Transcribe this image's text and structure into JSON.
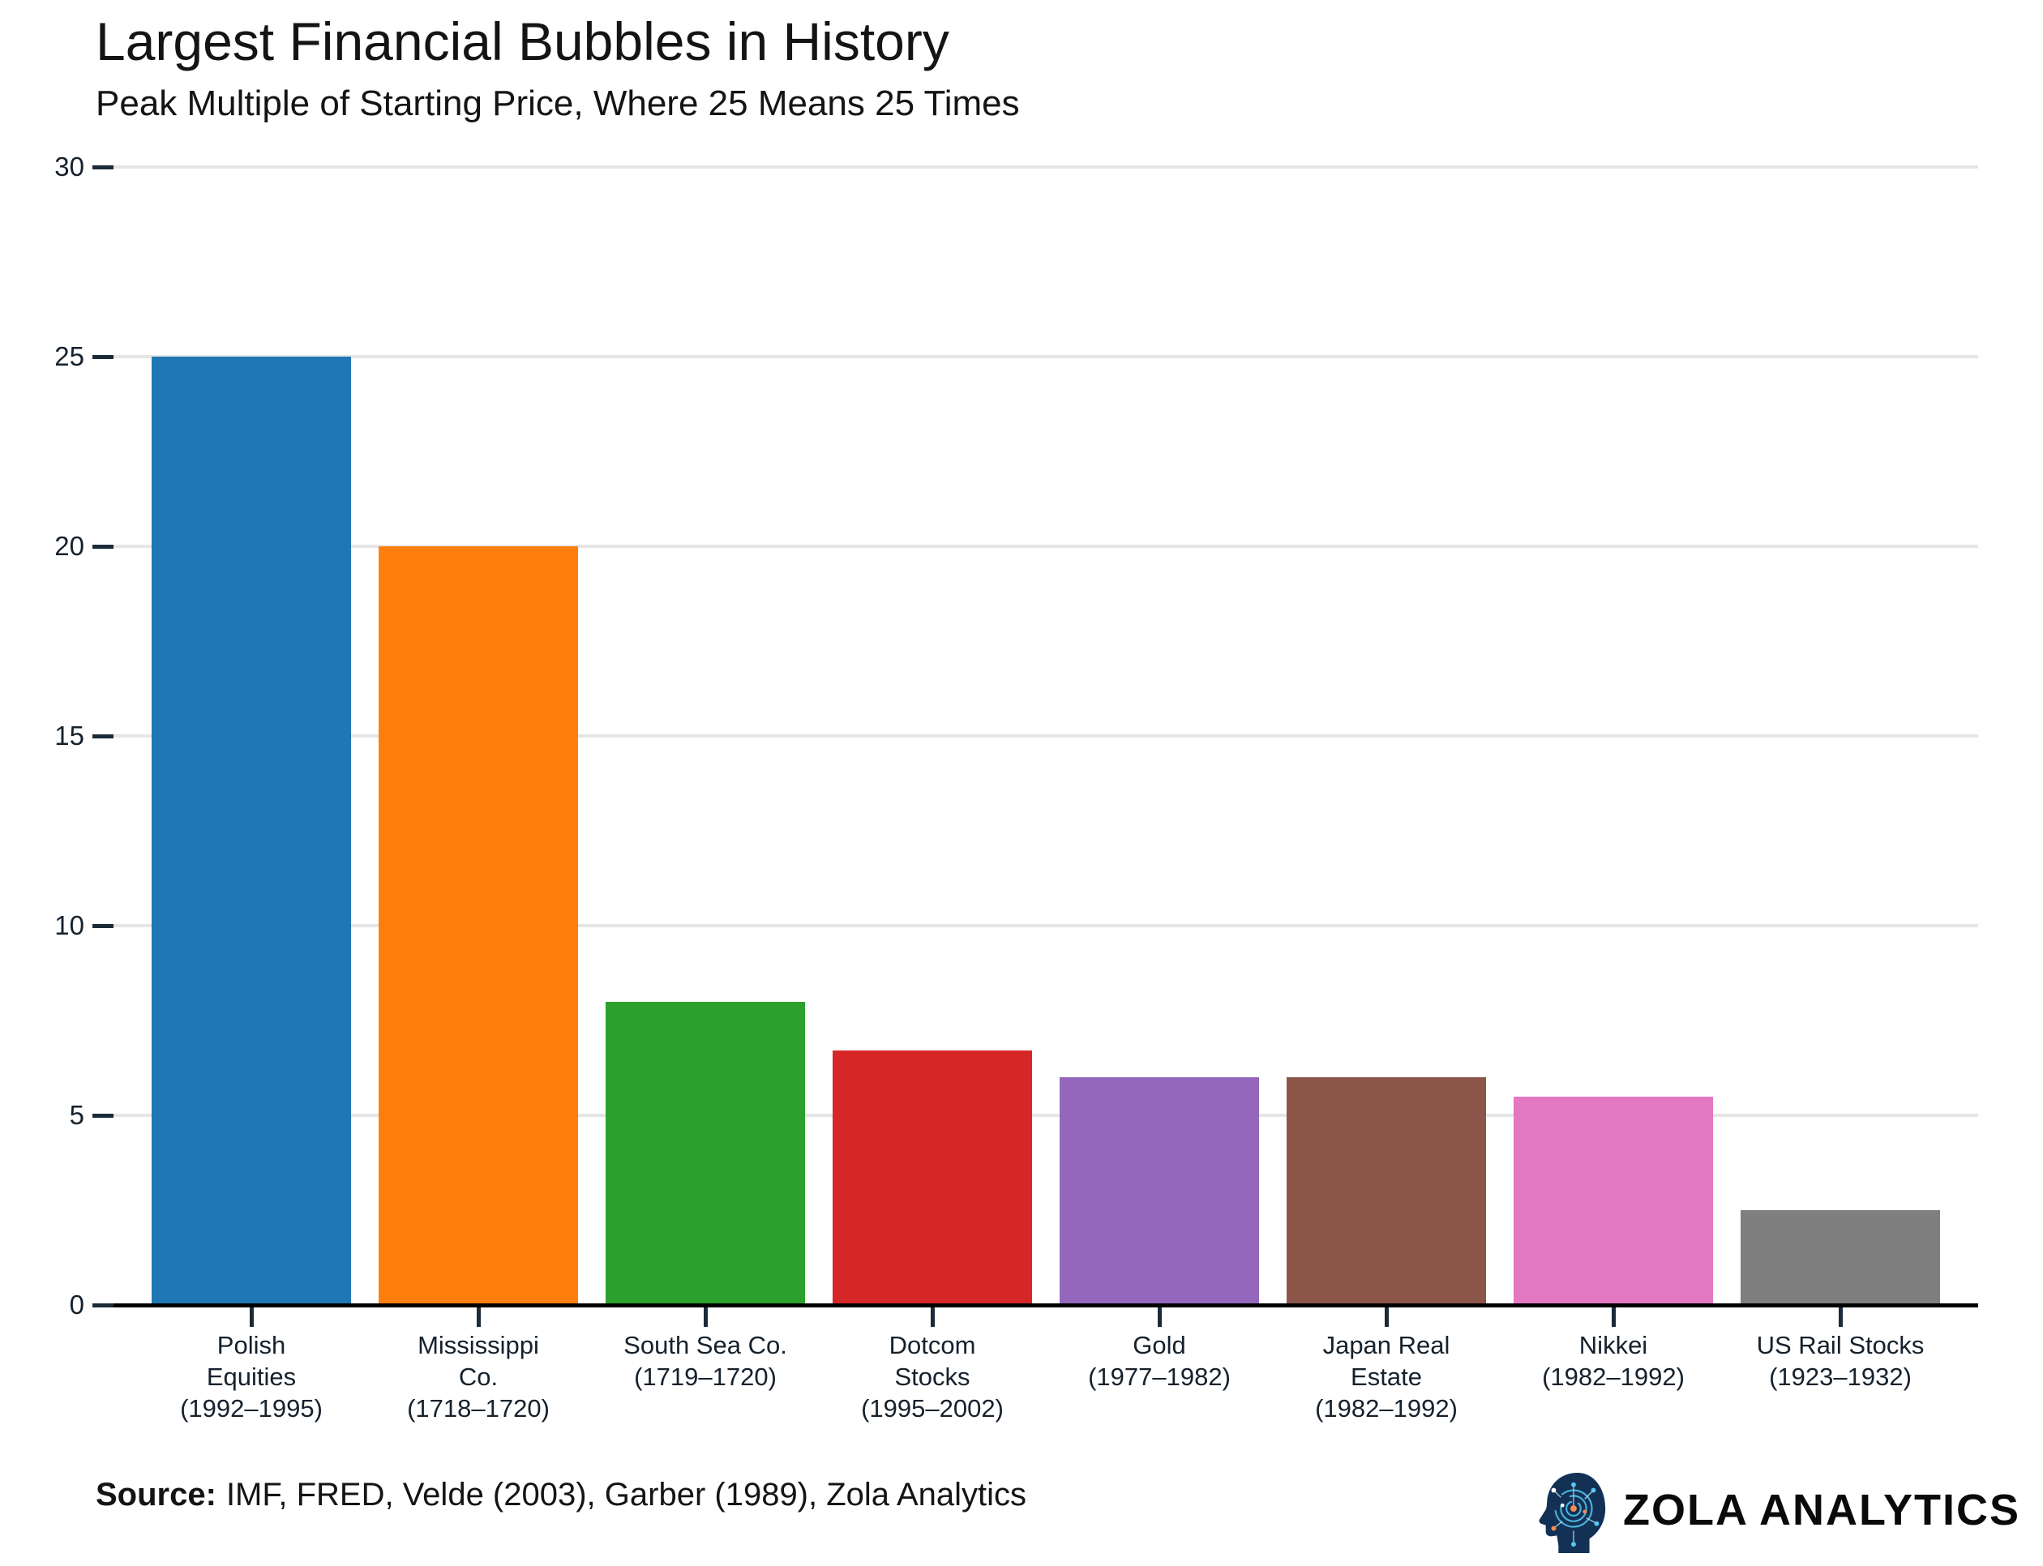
{
  "header": {
    "title": "Largest Financial Bubbles in History",
    "subtitle": "Peak Multiple of Starting Price, Where 25 Means 25 Times"
  },
  "footer": {
    "source_label": "Source:",
    "source_text": "IMF, FRED, Velde (2003), Garber (1989), Zola Analytics",
    "logo_text": "ZOLA ANALYTICS",
    "logo_icon": "brain-circuit-head-icon"
  },
  "chart_data": {
    "type": "bar",
    "title": "Largest Financial Bubbles in History",
    "subtitle": "Peak Multiple of Starting Price, Where 25 Means 25 Times",
    "categories": [
      "Polish\nEquities\n(1992–1995)",
      "Mississippi\nCo.\n(1718–1720)",
      "South Sea Co.\n(1719–1720)",
      "Dotcom\nStocks\n(1995–2002)",
      "Gold\n(1977–1982)",
      "Japan Real\nEstate\n(1982–1992)",
      "Nikkei\n(1982–1992)",
      "US Rail Stocks\n(1923–1932)"
    ],
    "values": [
      25,
      20,
      8,
      6.7,
      6,
      6,
      5.5,
      2.5
    ],
    "bar_colors": [
      "#1f77b4",
      "#ff7f0e",
      "#2ca02c",
      "#d62728",
      "#9467bd",
      "#8c564b",
      "#e377c2",
      "#7f7f7f"
    ],
    "ylim": [
      0,
      30
    ],
    "yticks": [
      0,
      5,
      10,
      15,
      20,
      25,
      30
    ],
    "grid": true,
    "legend": false,
    "xlabel": "",
    "ylabel": ""
  },
  "style": {
    "grid_color": "#e6e6e6",
    "axis_color": "#000000",
    "tick_color": "#1c2b39",
    "text_color": "#141414",
    "logo_navy": "#123155",
    "logo_cyan": "#56c8f2",
    "logo_orange": "#ff8a50"
  }
}
